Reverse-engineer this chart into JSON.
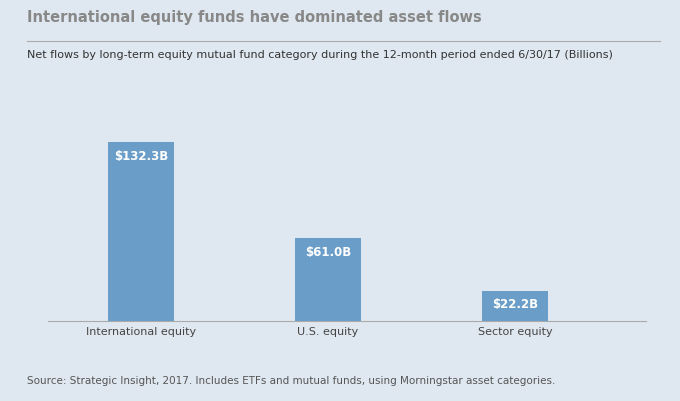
{
  "title": "International equity funds have dominated asset flows",
  "subtitle": "Net flows by long-term equity mutual fund category during the 12-month period ended 6/30/17 (Billions)",
  "footnote": "Source: Strategic Insight, 2017. Includes ETFs and mutual funds, using Morningstar asset categories.",
  "categories": [
    "International equity",
    "U.S. equity",
    "Sector equity"
  ],
  "values": [
    132.3,
    61.0,
    22.2
  ],
  "labels": [
    "$132.3B",
    "$61.0B",
    "$22.2B"
  ],
  "bar_color": "#6a9dc8",
  "background_color": "#dfe8f0",
  "title_color": "#888888",
  "subtitle_color": "#333333",
  "label_color": "#ffffff",
  "footnote_color": "#555555",
  "axis_line_color": "#aaaaaa",
  "ylim": [
    0,
    155
  ],
  "title_fontsize": 10.5,
  "subtitle_fontsize": 8.0,
  "label_fontsize": 8.5,
  "footnote_fontsize": 7.5,
  "category_fontsize": 8.0,
  "bar_positions": [
    1,
    2,
    3
  ],
  "bar_width": 0.35,
  "xlim": [
    0.5,
    3.7
  ]
}
